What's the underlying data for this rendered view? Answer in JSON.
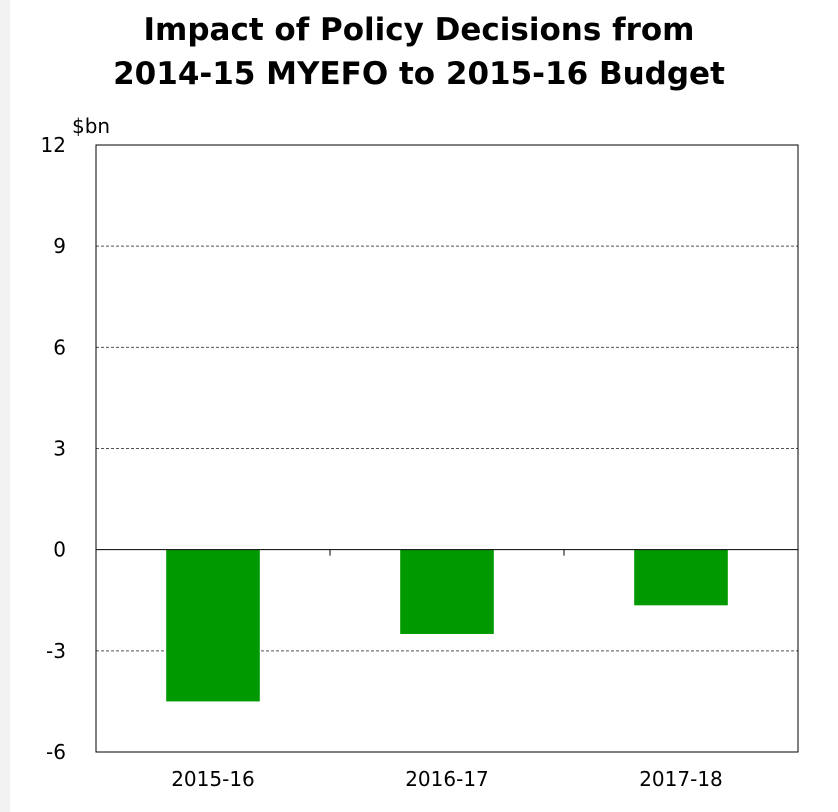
{
  "chart_data": {
    "type": "bar",
    "title": "Impact of Policy Decisions from 2014-15 MYEFO to 2015-16 Budget",
    "title_lines": [
      "Impact of Policy Decisions from",
      "2014-15 MYEFO to 2015-16 Budget"
    ],
    "ylabel": "$bn",
    "xlabel": "",
    "categories": [
      "2015-16",
      "2016-17",
      "2017-18"
    ],
    "values": [
      -4.5,
      -2.5,
      -1.65
    ],
    "ylim": [
      -6,
      12
    ],
    "yticks": [
      -6,
      -3,
      0,
      3,
      6,
      9,
      12
    ],
    "ytick_labels": [
      "-6",
      "-3",
      "0",
      "3",
      "6",
      "9",
      "12"
    ],
    "grid": true,
    "grid_style": "dashed",
    "bar_color": "#009900",
    "legend": "none"
  }
}
